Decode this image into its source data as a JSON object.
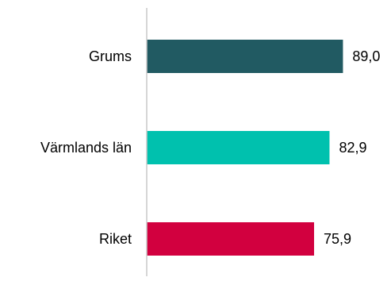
{
  "chart_data": {
    "type": "bar",
    "orientation": "horizontal",
    "categories": [
      "Grums",
      "Värmlands län",
      "Riket"
    ],
    "values": [
      89.0,
      82.9,
      75.9
    ],
    "value_labels": [
      "89,0",
      "82,9",
      "75,9"
    ],
    "colors": [
      "#215a62",
      "#00c1ae",
      "#d2003f"
    ],
    "axis_color": "#c8c8c8",
    "xlim": [
      0,
      100
    ],
    "grid": false,
    "legend": "none",
    "title": "",
    "xlabel": "",
    "ylabel": ""
  }
}
